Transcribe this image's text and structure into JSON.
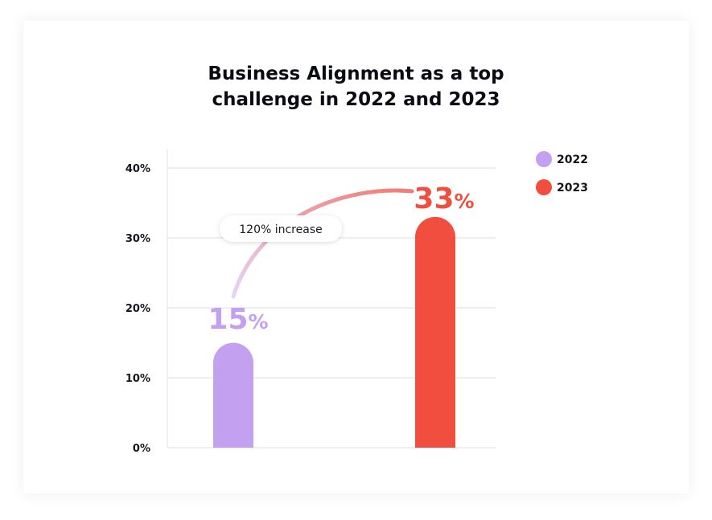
{
  "chart_data": {
    "type": "bar",
    "title_lines": [
      "Business Alignment as a top",
      "challenge in 2022 and 2023"
    ],
    "categories": [
      "2022",
      "2023"
    ],
    "values": [
      15,
      33
    ],
    "data_labels": [
      {
        "number": "15",
        "unit": "%"
      },
      {
        "number": "33",
        "unit": "%"
      }
    ],
    "ylim": [
      0,
      40
    ],
    "yticks": [
      {
        "value": 0,
        "label": "0%"
      },
      {
        "value": 10,
        "label": "10%"
      },
      {
        "value": 20,
        "label": "20%"
      },
      {
        "value": 30,
        "label": "30%"
      },
      {
        "value": 40,
        "label": "40%"
      }
    ],
    "grid": true,
    "legend": {
      "placement": "top-right",
      "entries": [
        {
          "label": "2022",
          "color": "#c4a0f0"
        },
        {
          "label": "2023",
          "color": "#f24e3f"
        }
      ]
    },
    "colors": [
      "#c4a0f0",
      "#f24e3f"
    ],
    "annotation": "120% increase"
  }
}
